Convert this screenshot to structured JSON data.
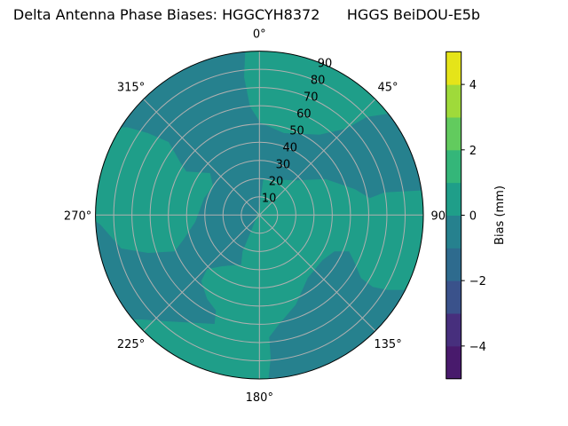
{
  "chart_data": {
    "type": "polar-contour",
    "title": "Delta Antenna Phase Biases: HGGCYH8372      HGGS BeiDOU-E5b",
    "angular_ticks": [
      "0°",
      "45°",
      "90°",
      "135°",
      "180°",
      "225°",
      "270°",
      "315°"
    ],
    "angular_zero": "top",
    "angular_direction": "clockwise",
    "radial_ticks": [
      "10",
      "20",
      "30",
      "40",
      "50",
      "60",
      "70",
      "80",
      "90"
    ],
    "radial_range": [
      0,
      90
    ],
    "grid": true,
    "colorbar": {
      "label": "Bias (mm)",
      "levels": [
        -5,
        -4,
        -3,
        -2,
        -1,
        0,
        1,
        2,
        3,
        4,
        5
      ],
      "ticks": [
        "4",
        "2",
        "0",
        "−2",
        "−4"
      ],
      "tick_values": [
        4,
        2,
        0,
        -2,
        -4
      ],
      "colormap": "viridis",
      "colors": [
        "#481a6c",
        "#472f7d",
        "#3a528b",
        "#2e6b8e",
        "#26818e",
        "#1f9e89",
        "#34b679",
        "#62cb5e",
        "#9fda3a",
        "#e5e419"
      ]
    },
    "observed_levels": [
      {
        "range": [
          -1,
          0
        ],
        "color": "#26818e",
        "role": "background"
      },
      {
        "range": [
          0,
          1
        ],
        "color": "#1f9e89",
        "role": "regions"
      }
    ]
  }
}
